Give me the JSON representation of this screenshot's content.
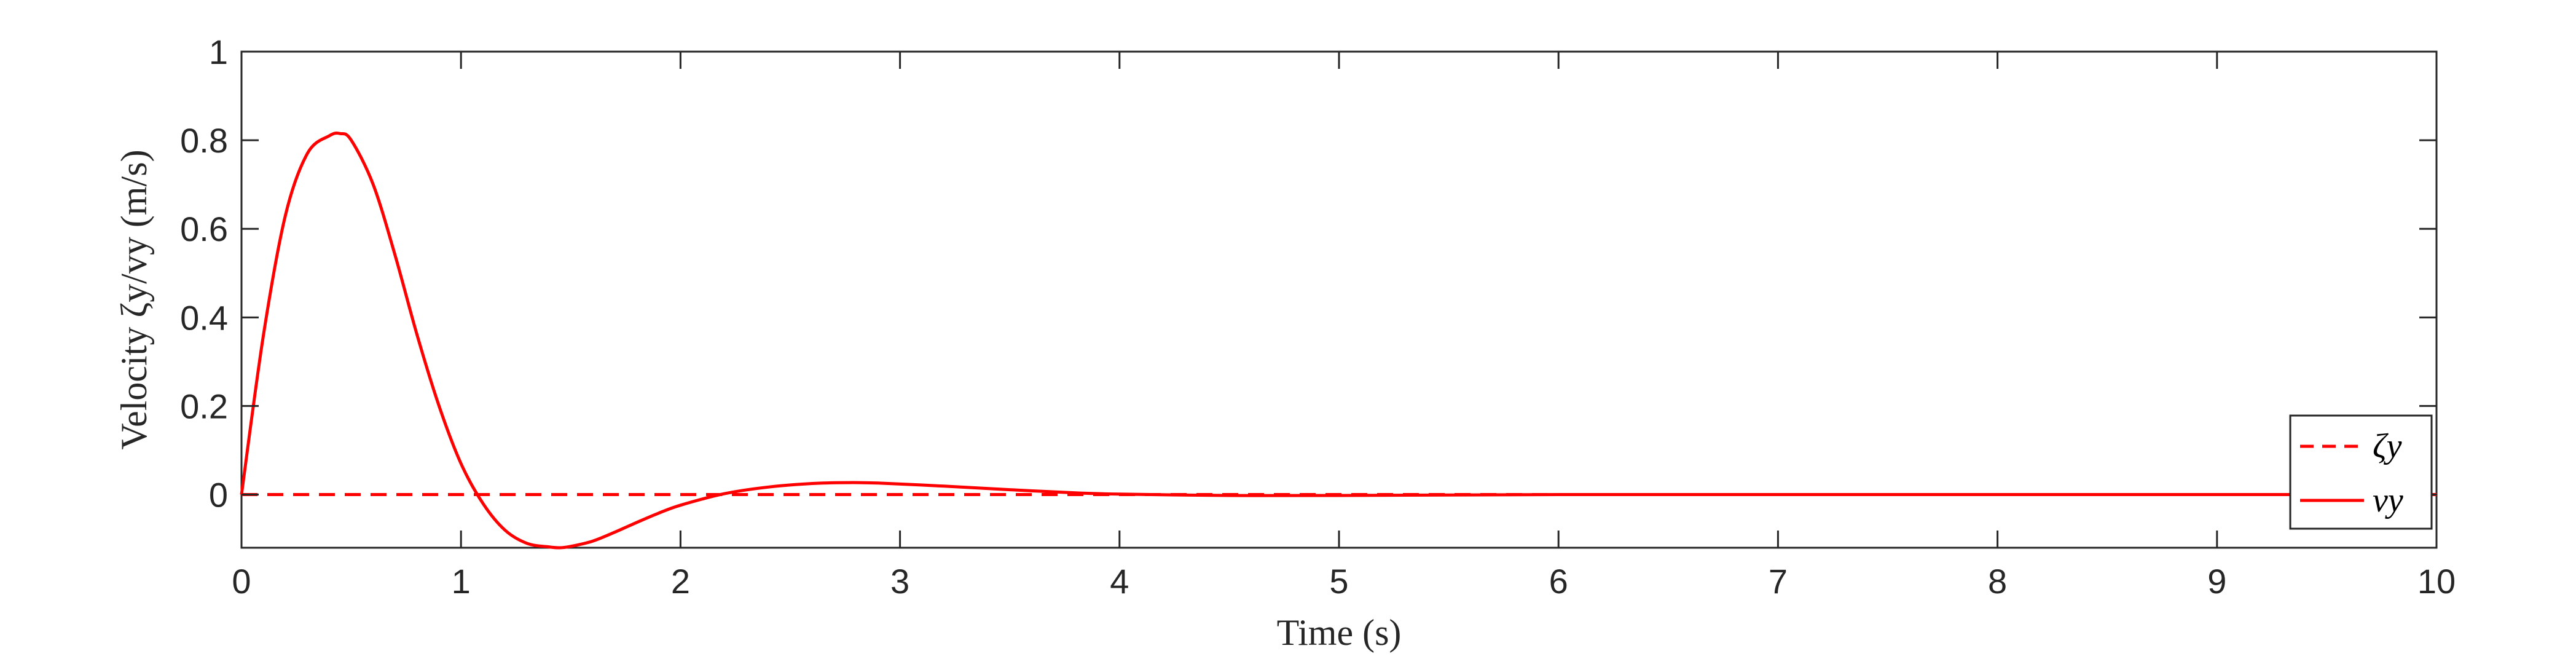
{
  "colors": {
    "series": "#ff0000",
    "axis": "#262626",
    "background": "#ffffff"
  },
  "chart_data": {
    "type": "line",
    "title": "",
    "xlabel": "Time (s)",
    "ylabel": "Velocity ζy/vy (m/s)",
    "xlim": [
      0,
      10
    ],
    "ylim": [
      -0.12,
      1
    ],
    "xticks": [
      "0",
      "1",
      "2",
      "3",
      "4",
      "5",
      "6",
      "7",
      "8",
      "9",
      "10"
    ],
    "yticks": [
      "0",
      "0.2",
      "0.4",
      "0.6",
      "0.8",
      "1"
    ],
    "grid": false,
    "legend_position": "bottom-right",
    "series": [
      {
        "name": "ζy",
        "style": "dashed",
        "x": [
          0,
          10
        ],
        "y": [
          0,
          0
        ]
      },
      {
        "name": "vy",
        "style": "solid",
        "x": [
          0,
          0.1,
          0.2,
          0.3,
          0.4,
          0.45,
          0.5,
          0.6,
          0.7,
          0.8,
          0.9,
          1.0,
          1.1,
          1.2,
          1.3,
          1.4,
          1.45,
          1.5,
          1.6,
          1.7,
          1.8,
          1.9,
          2.0,
          2.2,
          2.4,
          2.6,
          2.75,
          2.9,
          3.2,
          3.5,
          3.8,
          4.0,
          4.5,
          5.0,
          6.0,
          8.0,
          10.0
        ],
        "y": [
          0,
          0.36,
          0.63,
          0.77,
          0.81,
          0.815,
          0.8,
          0.7,
          0.54,
          0.36,
          0.2,
          0.07,
          -0.02,
          -0.08,
          -0.11,
          -0.118,
          -0.12,
          -0.117,
          -0.105,
          -0.085,
          -0.063,
          -0.042,
          -0.024,
          0.002,
          0.017,
          0.025,
          0.027,
          0.026,
          0.019,
          0.011,
          0.004,
          0.001,
          -0.002,
          -0.002,
          0.0,
          0.0,
          0.0
        ]
      }
    ]
  }
}
